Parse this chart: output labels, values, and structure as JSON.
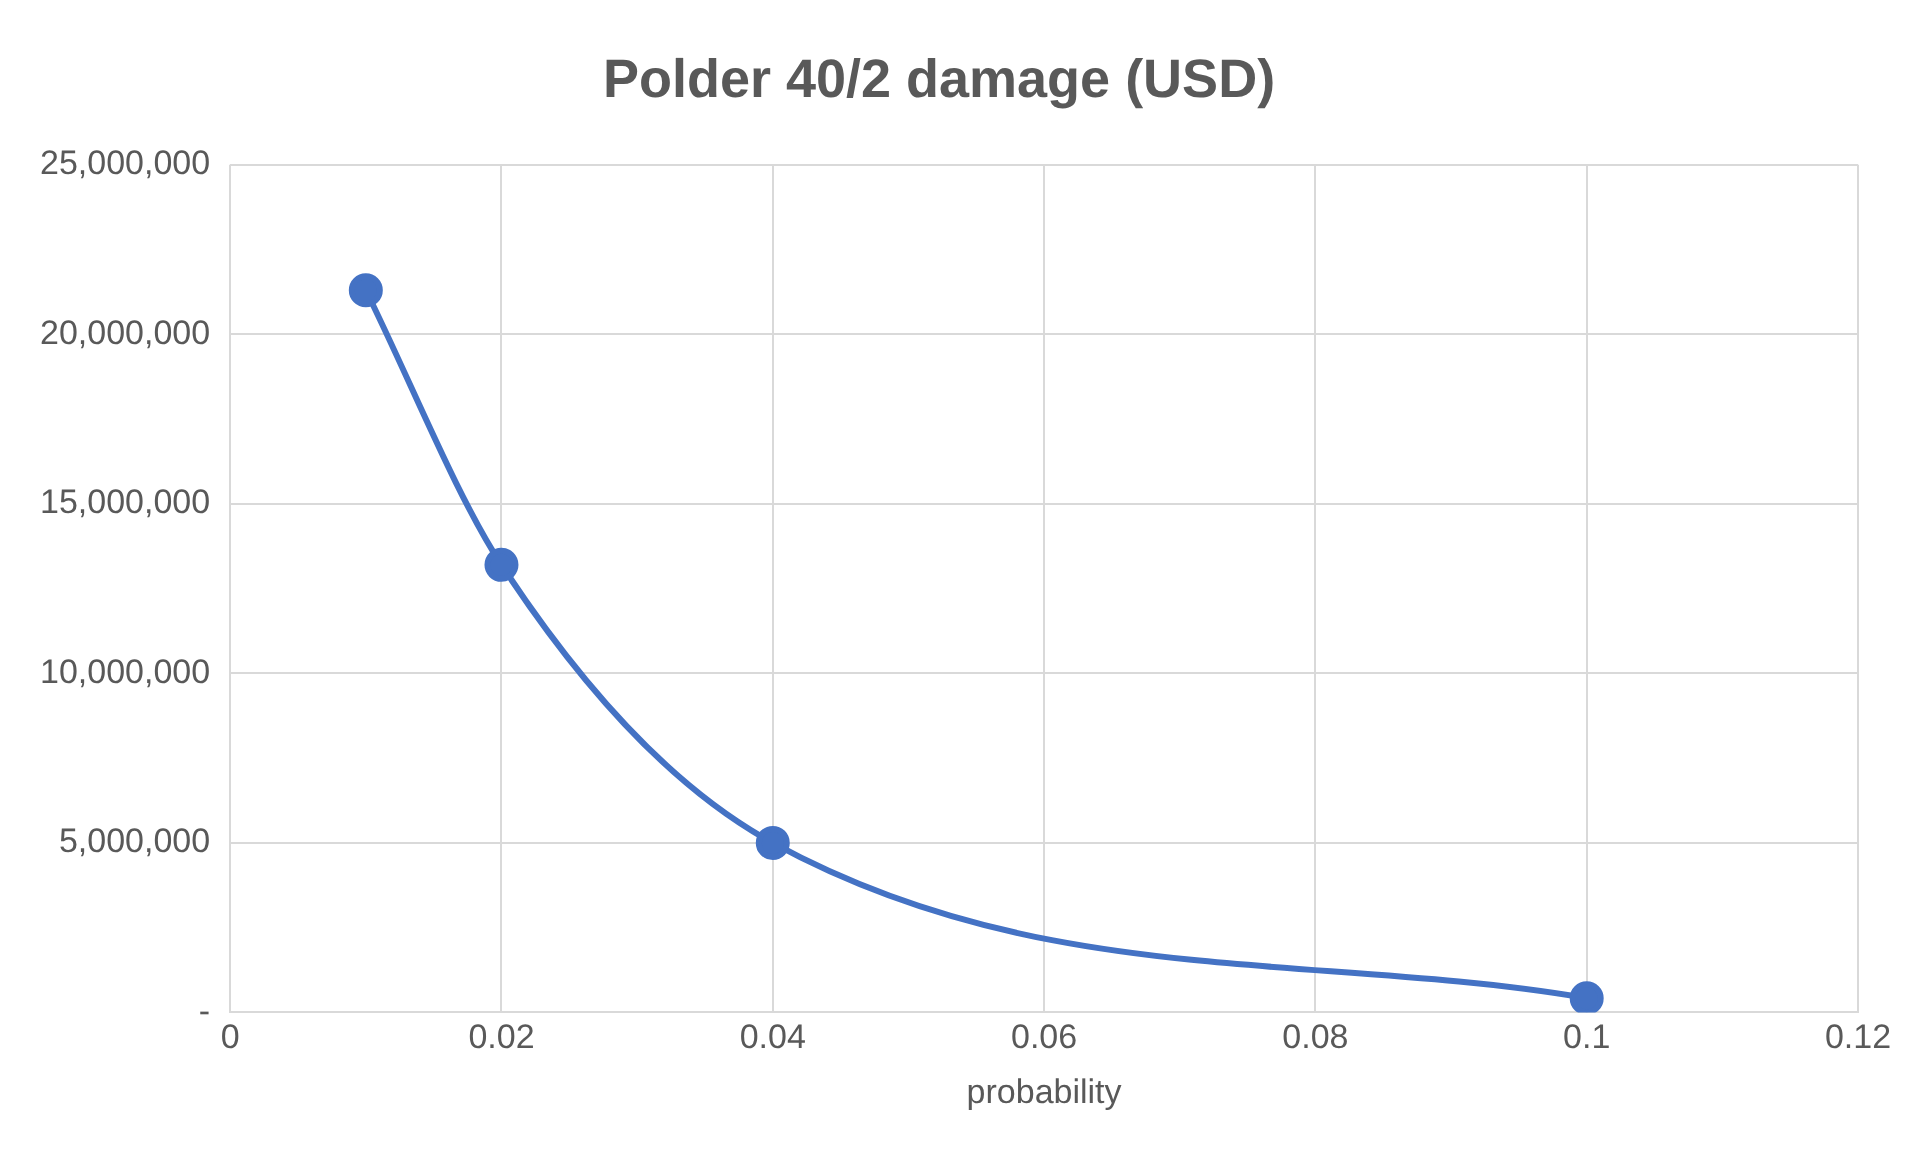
{
  "chart_data": {
    "type": "line",
    "title": "Polder 40/2 damage (USD)",
    "xlabel": "probability",
    "x": [
      0.01,
      0.02,
      0.04,
      0.1
    ],
    "series": [
      {
        "color": "#4472c4",
        "values": [
          21300000,
          13200000,
          5000000,
          420000
        ]
      }
    ],
    "xlim": [
      0,
      0.12
    ],
    "xticks": [
      0,
      0.02,
      0.04,
      0.06,
      0.08,
      0.1,
      0.12
    ],
    "ylim": [
      0,
      25000000
    ],
    "yticks": [
      {
        "value": 0,
        "label": "-"
      },
      {
        "value": 5000000,
        "label": "5,000,000"
      },
      {
        "value": 10000000,
        "label": "10,000,000"
      },
      {
        "value": 15000000,
        "label": "15,000,000"
      },
      {
        "value": 20000000,
        "label": "20,000,000"
      },
      {
        "value": 25000000,
        "label": "25,000,000"
      }
    ],
    "grid": true,
    "legend": false,
    "marker": "circle",
    "line_style": "solid"
  }
}
